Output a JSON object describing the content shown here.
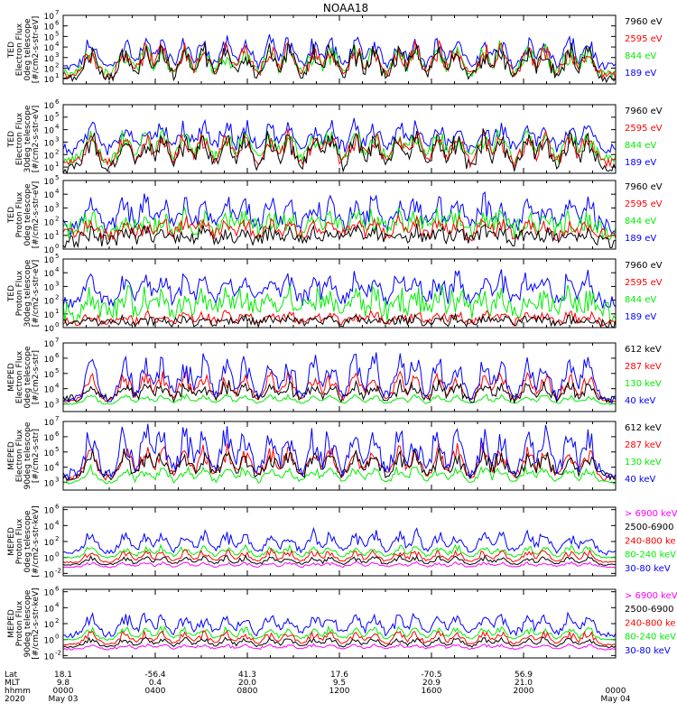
{
  "title": "NOAA18",
  "footer": {
    "row_labels": [
      "Lat",
      "MLT",
      "hhmm",
      "2020"
    ],
    "columns": [
      {
        "lat": "18.1",
        "mlt": "9.8",
        "hhmm": "0000",
        "date": "May 03"
      },
      {
        "lat": "-56.4",
        "mlt": "0.4",
        "hhmm": "0400",
        "date": ""
      },
      {
        "lat": "41.3",
        "mlt": "20.0",
        "hhmm": "0800",
        "date": ""
      },
      {
        "lat": "17.6",
        "mlt": "9.5",
        "hhmm": "1200",
        "date": ""
      },
      {
        "lat": "-70.5",
        "mlt": "20.9",
        "hhmm": "1600",
        "date": ""
      },
      {
        "lat": "56.9",
        "mlt": "21.0",
        "hhmm": "2000",
        "date": ""
      },
      {
        "lat": "",
        "mlt": "",
        "hhmm": "0000",
        "date": "May 04"
      }
    ]
  },
  "colors": {
    "blue": "#0000ff",
    "red": "#ff0000",
    "green": "#00ee00",
    "black": "#000000",
    "magenta": "#ff00ff"
  },
  "chart_data": [
    {
      "type": "line",
      "ylabel": [
        "TED",
        "Electron Flux",
        "0deg telescope",
        "[#/cm2-s-str-eV]"
      ],
      "yticks": [
        {
          "t": "10",
          "e": "1"
        },
        {
          "t": "10",
          "e": "2"
        },
        {
          "t": "10",
          "e": "3"
        },
        {
          "t": "10",
          "e": "4"
        },
        {
          "t": "10",
          "e": "5"
        },
        {
          "t": "10",
          "e": "6"
        },
        {
          "t": "10",
          "e": "7"
        }
      ],
      "ylim_log10": [
        0.5,
        7
      ],
      "xlim_hours": [
        0,
        24
      ],
      "legend": [
        {
          "label": "7960 eV",
          "color": "black"
        },
        {
          "label": "2595 eV",
          "color": "red"
        },
        {
          "label": "844 eV",
          "color": "green"
        },
        {
          "label": "189 eV",
          "color": "blue"
        }
      ],
      "series": [
        {
          "color": "blue",
          "base": 2.1,
          "spread": 0.4,
          "peak": 2.7
        },
        {
          "color": "green",
          "base": 1.4,
          "spread": 0.5,
          "peak": 2.6
        },
        {
          "color": "red",
          "base": 1.3,
          "spread": 0.4,
          "peak": 2.8
        },
        {
          "color": "black",
          "base": 1.0,
          "spread": 0.4,
          "peak": 3.0
        }
      ]
    },
    {
      "type": "line",
      "ylabel": [
        "TED",
        "Electron Flux",
        "30deg telescope",
        "[#/cm2-s-str-eV]"
      ],
      "yticks": [
        {
          "t": "10",
          "e": "1"
        },
        {
          "t": "10",
          "e": "2"
        },
        {
          "t": "10",
          "e": "3"
        },
        {
          "t": "10",
          "e": "4"
        },
        {
          "t": "10",
          "e": "5"
        },
        {
          "t": "10",
          "e": "6"
        }
      ],
      "ylim_log10": [
        0.5,
        6
      ],
      "xlim_hours": [
        0,
        24
      ],
      "legend": [
        {
          "label": "7960 eV",
          "color": "black"
        },
        {
          "label": "2595 eV",
          "color": "red"
        },
        {
          "label": "844 eV",
          "color": "green"
        },
        {
          "label": "189 eV",
          "color": "blue"
        }
      ],
      "series": [
        {
          "color": "blue",
          "base": 2.4,
          "spread": 0.5,
          "peak": 2.0
        },
        {
          "color": "green",
          "base": 1.6,
          "spread": 0.4,
          "peak": 2.2
        },
        {
          "color": "red",
          "base": 1.3,
          "spread": 0.4,
          "peak": 2.4
        },
        {
          "color": "black",
          "base": 0.9,
          "spread": 0.4,
          "peak": 2.8
        }
      ]
    },
    {
      "type": "line",
      "ylabel": [
        "TED",
        "Proton Flux",
        "0deg telescope",
        "[#/cm2-s-str-eV]"
      ],
      "yticks": [
        {
          "t": "10",
          "e": "0"
        },
        {
          "t": "10",
          "e": "1"
        },
        {
          "t": "10",
          "e": "2"
        },
        {
          "t": "10",
          "e": "3"
        },
        {
          "t": "10",
          "e": "4"
        },
        {
          "t": "10",
          "e": "5"
        }
      ],
      "ylim_log10": [
        0,
        5
      ],
      "xlim_hours": [
        0,
        24
      ],
      "legend": [
        {
          "label": "7960 eV",
          "color": "black"
        },
        {
          "label": "2595 eV",
          "color": "red"
        },
        {
          "label": "844 eV",
          "color": "green"
        },
        {
          "label": "189 eV",
          "color": "blue"
        }
      ],
      "series": [
        {
          "color": "blue",
          "base": 1.6,
          "spread": 0.6,
          "peak": 2.0
        },
        {
          "color": "green",
          "base": 1.4,
          "spread": 0.7,
          "peak": 1.0
        },
        {
          "color": "red",
          "base": 1.0,
          "spread": 0.5,
          "peak": 1.0
        },
        {
          "color": "black",
          "base": 0.6,
          "spread": 0.5,
          "peak": 0.8
        }
      ]
    },
    {
      "type": "line",
      "ylabel": [
        "TED",
        "Proton Flux",
        "30deg telescope",
        "[#/cm2-s-str-eV]"
      ],
      "yticks": [
        {
          "t": "10",
          "e": "0"
        },
        {
          "t": "10",
          "e": "1"
        },
        {
          "t": "10",
          "e": "2"
        },
        {
          "t": "10",
          "e": "3"
        },
        {
          "t": "10",
          "e": "4"
        },
        {
          "t": "10",
          "e": "5"
        }
      ],
      "ylim_log10": [
        0,
        5
      ],
      "xlim_hours": [
        0,
        24
      ],
      "legend": [
        {
          "label": "7960 eV",
          "color": "black"
        },
        {
          "label": "2595 eV",
          "color": "red"
        },
        {
          "label": "844 eV",
          "color": "green"
        },
        {
          "label": "189 eV",
          "color": "blue"
        }
      ],
      "series": [
        {
          "color": "blue",
          "base": 1.8,
          "spread": 0.5,
          "peak": 2.0
        },
        {
          "color": "green",
          "base": 1.1,
          "spread": 0.8,
          "peak": 1.4
        },
        {
          "color": "red",
          "base": 0.4,
          "spread": 0.3,
          "peak": 0.6
        },
        {
          "color": "black",
          "base": 0.3,
          "spread": 0.3,
          "peak": 0.4
        }
      ]
    },
    {
      "type": "line",
      "ylabel": [
        "MEPED",
        "Electron Flux",
        "0deg telescope",
        "[#/cm2-s-str]"
      ],
      "yticks": [
        {
          "t": "10",
          "e": "3"
        },
        {
          "t": "10",
          "e": "4"
        },
        {
          "t": "10",
          "e": "5"
        },
        {
          "t": "10",
          "e": "6"
        },
        {
          "t": "10",
          "e": "7"
        }
      ],
      "ylim_log10": [
        2.5,
        7
      ],
      "xlim_hours": [
        0,
        24
      ],
      "legend": [
        {
          "label": "612 keV",
          "color": "black"
        },
        {
          "label": "287 keV",
          "color": "red"
        },
        {
          "label": "130 keV",
          "color": "green"
        },
        {
          "label": "40 keV",
          "color": "blue"
        }
      ],
      "series": [
        {
          "color": "green",
          "base": 3.0,
          "spread": 0.05,
          "peak": 0.6
        },
        {
          "color": "red",
          "base": 3.2,
          "spread": 0.1,
          "peak": 1.8
        },
        {
          "color": "black",
          "base": 3.3,
          "spread": 0.3,
          "peak": 1.0
        },
        {
          "color": "blue",
          "base": 3.3,
          "spread": 0.3,
          "peak": 2.8
        }
      ]
    },
    {
      "type": "line",
      "ylabel": [
        "MEPED",
        "Electron Flux",
        "90deg telescope",
        "[#/cm2-s-str]"
      ],
      "yticks": [
        {
          "t": "10",
          "e": "3"
        },
        {
          "t": "10",
          "e": "4"
        },
        {
          "t": "10",
          "e": "5"
        },
        {
          "t": "10",
          "e": "6"
        },
        {
          "t": "10",
          "e": "7"
        }
      ],
      "ylim_log10": [
        2.5,
        7
      ],
      "xlim_hours": [
        0,
        24
      ],
      "legend": [
        {
          "label": "612 keV",
          "color": "black"
        },
        {
          "label": "287 keV",
          "color": "red"
        },
        {
          "label": "130 keV",
          "color": "green"
        },
        {
          "label": "40 keV",
          "color": "blue"
        }
      ],
      "series": [
        {
          "color": "green",
          "base": 3.0,
          "spread": 0.1,
          "peak": 1.0
        },
        {
          "color": "red",
          "base": 3.3,
          "spread": 0.2,
          "peak": 2.0
        },
        {
          "color": "black",
          "base": 3.4,
          "spread": 0.3,
          "peak": 1.5
        },
        {
          "color": "blue",
          "base": 3.5,
          "spread": 0.4,
          "peak": 3.0
        }
      ]
    },
    {
      "type": "line",
      "ylabel": [
        "MEPED",
        "Proton Flux",
        "0deg telescope",
        "[#/cm2-s-str-keV]"
      ],
      "yticks": [
        {
          "t": "10",
          "e": "-2"
        },
        {
          "t": "10",
          "e": "0"
        },
        {
          "t": "10",
          "e": "2"
        },
        {
          "t": "10",
          "e": "4"
        },
        {
          "t": "10",
          "e": "6"
        }
      ],
      "ylim_log10": [
        -2.3,
        6.3
      ],
      "xlim_hours": [
        0,
        24
      ],
      "legend": [
        {
          "label": "> 6900 keV",
          "color": "magenta"
        },
        {
          "label": "2500-6900",
          "color": "black"
        },
        {
          "label": "240-800 ke",
          "color": "red"
        },
        {
          "label": "80-240 keV",
          "color": "green"
        },
        {
          "label": "30-80 keV",
          "color": "blue"
        }
      ],
      "series": [
        {
          "color": "blue",
          "base": 0.6,
          "spread": 0.3,
          "peak": 2.6
        },
        {
          "color": "green",
          "base": 0.0,
          "spread": 0.1,
          "peak": 1.4
        },
        {
          "color": "red",
          "base": -0.6,
          "spread": 0.1,
          "peak": 1.5
        },
        {
          "color": "black",
          "base": -0.9,
          "spread": 0.1,
          "peak": 1.0
        },
        {
          "color": "magenta",
          "base": -1.2,
          "spread": 0.1,
          "peak": 0.6
        }
      ]
    },
    {
      "type": "line",
      "ylabel": [
        "MEPED",
        "Proton Flux",
        "90deg telescope",
        "[#/cm2-s-str-keV]"
      ],
      "yticks": [
        {
          "t": "10",
          "e": "-2"
        },
        {
          "t": "10",
          "e": "0"
        },
        {
          "t": "10",
          "e": "2"
        },
        {
          "t": "10",
          "e": "4"
        },
        {
          "t": "10",
          "e": "6"
        }
      ],
      "ylim_log10": [
        -2.3,
        6.3
      ],
      "xlim_hours": [
        0,
        24
      ],
      "legend": [
        {
          "label": "> 6900 keV",
          "color": "magenta"
        },
        {
          "label": "2500-6900",
          "color": "black"
        },
        {
          "label": "240-800 ke",
          "color": "red"
        },
        {
          "label": "80-240 keV",
          "color": "green"
        },
        {
          "label": "30-80 keV",
          "color": "blue"
        }
      ],
      "series": [
        {
          "color": "blue",
          "base": 0.6,
          "spread": 0.4,
          "peak": 2.6
        },
        {
          "color": "green",
          "base": 0.0,
          "spread": 0.1,
          "peak": 1.5
        },
        {
          "color": "red",
          "base": -0.6,
          "spread": 0.1,
          "peak": 1.6
        },
        {
          "color": "black",
          "base": -0.9,
          "spread": 0.1,
          "peak": 1.1
        },
        {
          "color": "magenta",
          "base": -1.2,
          "spread": 0.1,
          "peak": 0.6
        }
      ]
    }
  ]
}
